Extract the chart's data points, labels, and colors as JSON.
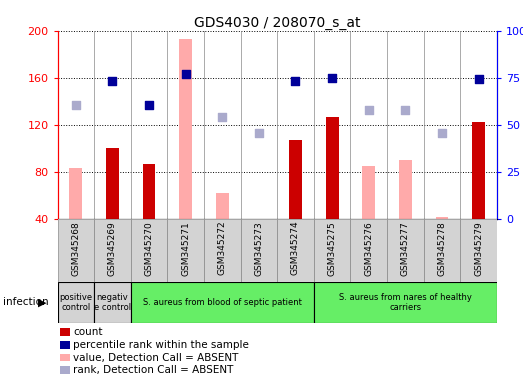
{
  "title": "GDS4030 / 208070_s_at",
  "samples": [
    "GSM345268",
    "GSM345269",
    "GSM345270",
    "GSM345271",
    "GSM345272",
    "GSM345273",
    "GSM345274",
    "GSM345275",
    "GSM345276",
    "GSM345277",
    "GSM345278",
    "GSM345279"
  ],
  "ylim_left": [
    40,
    200
  ],
  "ylim_right": [
    0,
    100
  ],
  "yticks_left": [
    40,
    80,
    120,
    160,
    200
  ],
  "yticks_right": [
    0,
    25,
    50,
    75,
    100
  ],
  "count_bars": [
    null,
    100,
    87,
    null,
    null,
    null,
    107,
    127,
    null,
    null,
    null,
    122
  ],
  "value_absent_bars": [
    83,
    null,
    null,
    193,
    62,
    null,
    null,
    null,
    85,
    90,
    42,
    null
  ],
  "rank_present_dots": [
    null,
    157,
    137,
    163,
    null,
    null,
    157,
    160,
    null,
    null,
    null,
    159
  ],
  "rank_absent_dots": [
    137,
    null,
    null,
    null,
    127,
    113,
    null,
    null,
    133,
    133,
    113,
    null
  ],
  "count_color": "#cc0000",
  "value_absent_color": "#ffaaaa",
  "rank_present_color": "#000099",
  "rank_absent_color": "#aaaacc",
  "group_bg_gray": "#d0d0d0",
  "group_bg_green": "#66ee66",
  "groups": [
    {
      "label": "positive\ncontrol",
      "start": 0,
      "end": 1,
      "color": "#d3d3d3"
    },
    {
      "label": "negativ\ne control",
      "start": 1,
      "end": 2,
      "color": "#d3d3d3"
    },
    {
      "label": "S. aureus from blood of septic patient",
      "start": 2,
      "end": 7,
      "color": "#66ee66"
    },
    {
      "label": "S. aureus from nares of healthy\ncarriers",
      "start": 7,
      "end": 12,
      "color": "#66ee66"
    }
  ],
  "bar_width": 0.35,
  "dot_size": 30,
  "legend_items": [
    {
      "color": "#cc0000",
      "label": "count"
    },
    {
      "color": "#000099",
      "label": "percentile rank within the sample"
    },
    {
      "color": "#ffaaaa",
      "label": "value, Detection Call = ABSENT"
    },
    {
      "color": "#aaaacc",
      "label": "rank, Detection Call = ABSENT"
    }
  ]
}
